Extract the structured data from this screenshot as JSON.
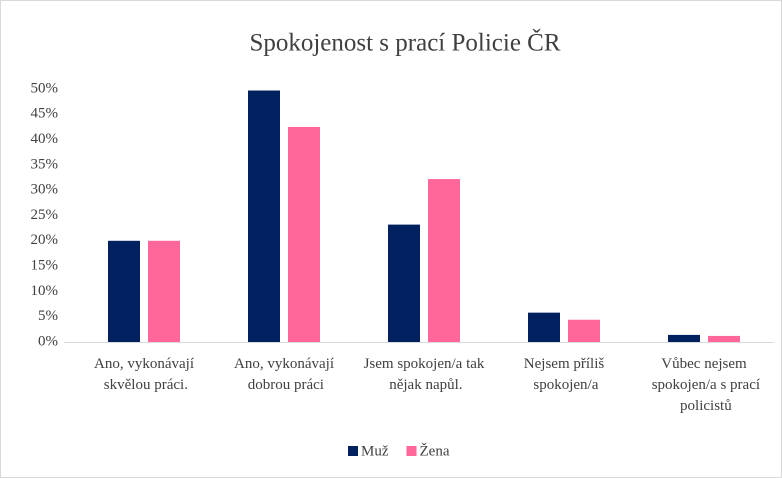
{
  "chart_data": {
    "type": "bar",
    "title": "Spokojenost s prací Policie ČR",
    "categories": [
      "Ano, vykonávají skvělou práci.",
      "Ano, vykonávají dobrou práci",
      "Jsem spokojen/a tak nějak napůl.",
      "Nejsem příliš spokojen/a",
      "Vůbec nejsem spokojen/a s prací policistů"
    ],
    "series": [
      {
        "name": "Muž",
        "color": "#002060",
        "values": [
          20,
          49.7,
          23.2,
          5.8,
          1.4
        ]
      },
      {
        "name": "Žena",
        "color": "#ff6699",
        "values": [
          20,
          42.5,
          32.2,
          4.4,
          1.2
        ]
      }
    ],
    "ylim": [
      0,
      50
    ],
    "yticks": [
      {
        "value": 0,
        "label": "0%"
      },
      {
        "value": 5,
        "label": "5%"
      },
      {
        "value": 10,
        "label": "10%"
      },
      {
        "value": 15,
        "label": "15%"
      },
      {
        "value": 20,
        "label": "20%"
      },
      {
        "value": 25,
        "label": "25%"
      },
      {
        "value": 30,
        "label": "30%"
      },
      {
        "value": 35,
        "label": "35%"
      },
      {
        "value": 40,
        "label": "40%"
      },
      {
        "value": 45,
        "label": "45%"
      },
      {
        "value": 50,
        "label": "50%"
      }
    ],
    "grid": false,
    "legend": "bottom"
  }
}
